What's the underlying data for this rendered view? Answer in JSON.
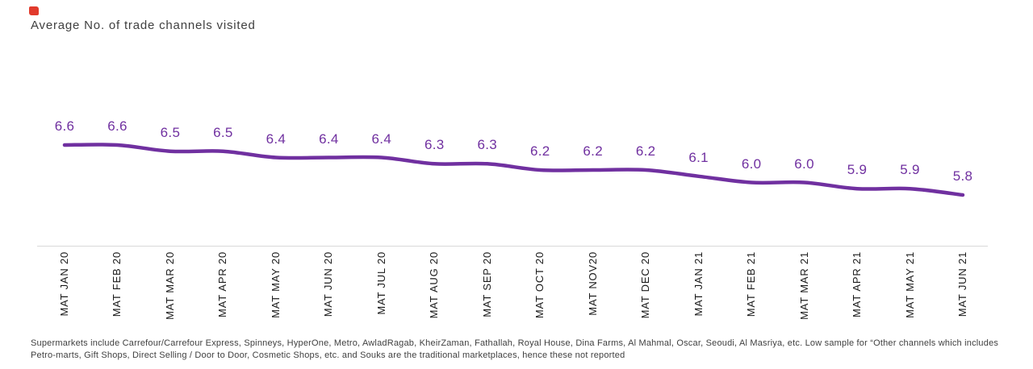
{
  "header": {
    "title": "Average No. of trade channels visited",
    "mark_color": "#e13a2c"
  },
  "chart_data": {
    "type": "line",
    "title": "Average No. of trade channels visited",
    "categories": [
      "MAT JAN 20",
      "MAT FEB 20",
      "MAT MAR 20",
      "MAT APR 20",
      "MAT MAY 20",
      "MAT JUN 20",
      "MAT JUL 20",
      "MAT AUG 20",
      "MAT SEP 20",
      "MAT OCT 20",
      "MAT NOV20",
      "MAT DEC 20",
      "MAT JAN 21",
      "MAT FEB 21",
      "MAT MAR 21",
      "MAT APR 21",
      "MAT MAY 21",
      "MAT JUN 21"
    ],
    "values": [
      6.6,
      6.6,
      6.5,
      6.5,
      6.4,
      6.4,
      6.4,
      6.3,
      6.3,
      6.2,
      6.2,
      6.2,
      6.1,
      6.0,
      6.0,
      5.9,
      5.9,
      5.8
    ],
    "value_label_format": "one-decimal",
    "line_color": "#7030a0",
    "label_color": "#7030a0",
    "axis_line_color": "#d9d9d9",
    "tick_label_color": "#1a1a1a",
    "grid": false,
    "legend": false,
    "ylim": [
      5.6,
      6.8
    ]
  },
  "footnote": {
    "lines": [
      "Supermarkets include Carrefour/Carrefour Express, Spinneys, HyperOne, Metro, AwladRagab, KheirZaman, Fathallah, Royal House, Dina Farms, Al Mahmal, Oscar, Seoudi, Al Masriya, etc.  Low sample for “Other channels which includes",
      "Petro-marts, Gift Shops, Direct Selling / Door to Door, Cosmetic Shops, etc. and Souks are the traditional marketplaces, hence these not reported"
    ]
  }
}
